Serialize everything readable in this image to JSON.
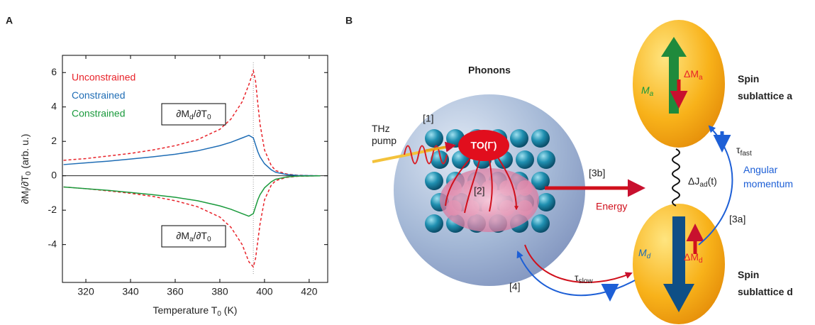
{
  "panel_labels": [
    "A",
    "B"
  ],
  "chart_data": {
    "type": "line",
    "x_label": [
      "Temperature T",
      "0",
      " (K)"
    ],
    "y_label": [
      "∂M",
      "l",
      "/∂T",
      "0",
      " (arb. u.)"
    ],
    "x": [
      310,
      320,
      330,
      340,
      350,
      360,
      370,
      380,
      385,
      390,
      393,
      395,
      396,
      397,
      398,
      400,
      403,
      405,
      410,
      415,
      420,
      425
    ],
    "series": [
      {
        "name": "Unconstrained",
        "color": "#e8232a",
        "dashed": true,
        "values": [
          0.9,
          1.0,
          1.15,
          1.3,
          1.5,
          1.75,
          2.1,
          2.7,
          3.3,
          4.3,
          5.3,
          6.1,
          5.5,
          4.2,
          3.0,
          1.5,
          0.6,
          0.3,
          0.1,
          0.03,
          0.01,
          0
        ],
        "lower_values": [
          -0.65,
          -0.75,
          -0.88,
          -1.02,
          -1.2,
          -1.45,
          -1.8,
          -2.4,
          -3.0,
          -4.0,
          -5.0,
          -5.3,
          -4.8,
          -3.8,
          -2.8,
          -1.4,
          -0.55,
          -0.28,
          -0.09,
          -0.03,
          -0.01,
          0
        ]
      },
      {
        "name": "Constrained",
        "color": "#1f6db5",
        "dashed": false,
        "values": [
          0.65,
          0.75,
          0.85,
          0.97,
          1.1,
          1.25,
          1.45,
          1.75,
          1.95,
          2.2,
          2.35,
          2.2,
          1.8,
          1.4,
          1.1,
          0.7,
          0.35,
          0.2,
          0.07,
          0.02,
          0.01,
          0
        ]
      },
      {
        "name": "Constrained",
        "color": "#1a9a3c",
        "dashed": false,
        "values": [
          -0.65,
          -0.75,
          -0.85,
          -0.97,
          -1.1,
          -1.25,
          -1.45,
          -1.75,
          -1.95,
          -2.2,
          -2.35,
          -2.2,
          -1.8,
          -1.4,
          -1.1,
          -0.7,
          -0.35,
          -0.2,
          -0.07,
          -0.02,
          -0.01,
          0
        ]
      }
    ],
    "annotations": [
      [
        "∂M",
        "d",
        "/∂T",
        "0"
      ],
      [
        "∂M",
        "a",
        "/∂T",
        "0"
      ]
    ],
    "vline": 395,
    "xlim": [
      309.5,
      428.3
    ],
    "xticks": [
      320,
      340,
      360,
      380,
      400,
      420
    ],
    "ylim": [
      -6.2,
      7
    ],
    "yticks": [
      -4,
      -2,
      0,
      2,
      4,
      6
    ]
  },
  "diagram": {
    "phonons": "Phonons",
    "thz_pump": [
      "THz",
      "pump"
    ],
    "step1": "[1]",
    "to_mode": "TO(Γ)",
    "step2": "[2]",
    "step3b": "[3b]",
    "energy": "Energy",
    "exchange": [
      "ΔJ",
      "ad",
      "(t)"
    ],
    "spin_a": [
      "Spin",
      "sublattice a"
    ],
    "m_a": [
      "M",
      "a"
    ],
    "dm_a": [
      "ΔM",
      "a"
    ],
    "tau_fast": [
      "τ",
      "fast"
    ],
    "angular": [
      "Angular",
      "momentum"
    ],
    "step3a": "[3a]",
    "m_d": [
      "M",
      "d"
    ],
    "dm_d": [
      "ΔM",
      "d"
    ],
    "spin_d": [
      "Spin",
      "sublattice d"
    ],
    "tau_slow": [
      "τ",
      "slow"
    ],
    "step4": "[4]"
  }
}
